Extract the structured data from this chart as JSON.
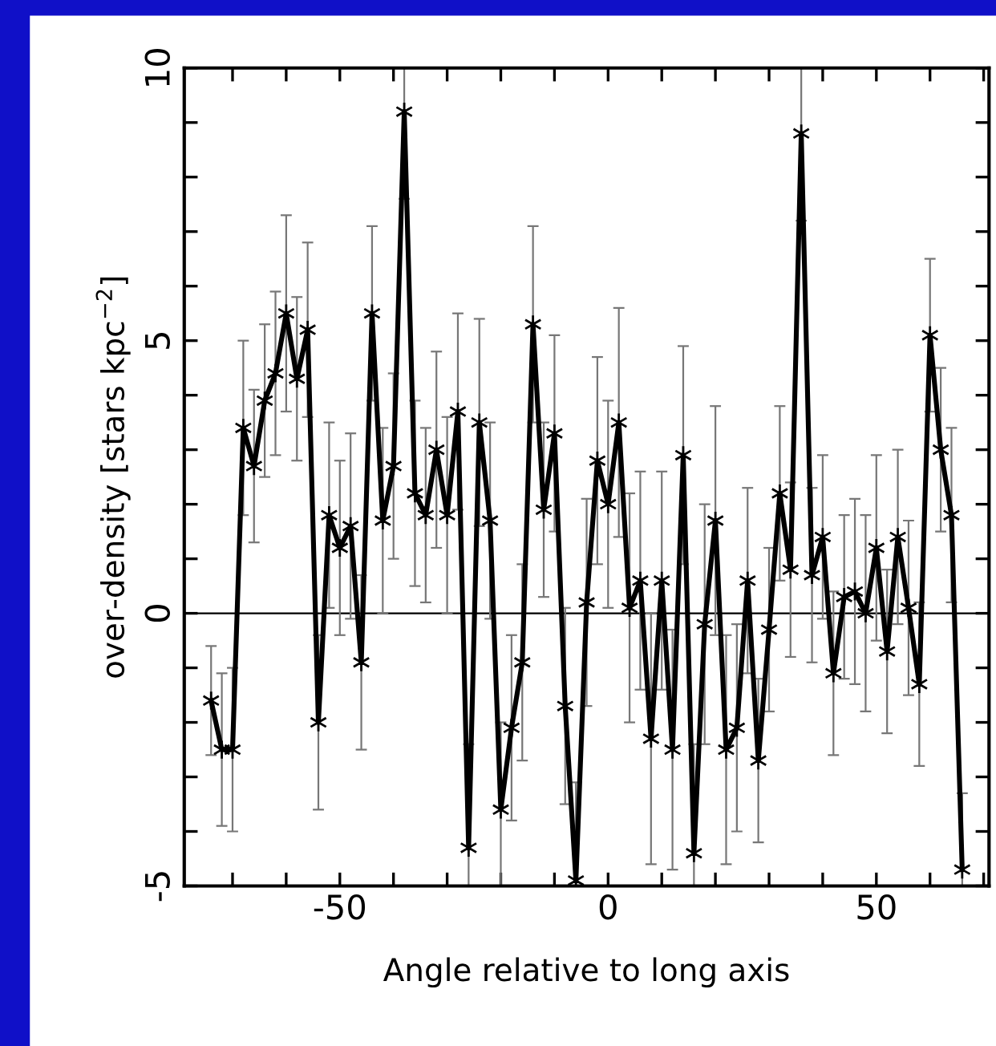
{
  "chart_data": {
    "type": "line",
    "xlabel": "Angle relative to long axis",
    "ylabel": "over-density [stars kpc$^{−2}$]",
    "x": [
      -74,
      -72,
      -70,
      -68,
      -66,
      -64,
      -62,
      -60,
      -58,
      -56,
      -54,
      -52,
      -50,
      -48,
      -46,
      -44,
      -42,
      -40,
      -38,
      -36,
      -34,
      -32,
      -30,
      -28,
      -26,
      -24,
      -22,
      -20,
      -18,
      -16,
      -14,
      -12,
      -10,
      -8,
      -6,
      -4,
      -2,
      0,
      2,
      4,
      6,
      8,
      10,
      12,
      14,
      16,
      18,
      20,
      22,
      24,
      26,
      28,
      30,
      32,
      34,
      36,
      38,
      40,
      42,
      44,
      46,
      48,
      50,
      52,
      54,
      56,
      58,
      60,
      62,
      64,
      66
    ],
    "series": [
      {
        "color": "#000000",
        "values": [
          -1.6,
          -2.5,
          -2.5,
          3.4,
          2.7,
          3.9,
          4.4,
          5.5,
          4.3,
          5.2,
          -2.0,
          1.8,
          1.2,
          1.6,
          -0.9,
          5.5,
          1.7,
          2.7,
          9.2,
          2.2,
          1.8,
          3.0,
          1.8,
          3.7,
          -4.3,
          3.5,
          1.7,
          -3.6,
          -2.1,
          -0.9,
          5.3,
          1.9,
          3.3,
          -1.7,
          -4.9,
          0.2,
          2.8,
          2.0,
          3.5,
          0.1,
          0.6,
          -2.3,
          0.6,
          -2.5,
          2.9,
          -4.4,
          -0.2,
          1.7,
          -2.5,
          -2.1,
          0.6,
          -2.7,
          -0.3,
          2.2,
          0.8,
          8.8,
          0.7,
          1.4,
          -1.1,
          0.3,
          0.4,
          0.0,
          1.2,
          -0.7,
          1.4,
          0.1,
          -1.3,
          5.1,
          3.0,
          1.8,
          -4.7
        ],
        "errors": [
          1.0,
          1.4,
          1.5,
          1.6,
          1.4,
          1.4,
          1.5,
          1.8,
          1.5,
          1.6,
          1.6,
          1.7,
          1.6,
          1.7,
          1.6,
          1.6,
          1.7,
          1.7,
          1.6,
          1.7,
          1.6,
          1.8,
          1.8,
          1.8,
          1.9,
          1.9,
          1.8,
          1.6,
          1.7,
          1.8,
          1.8,
          1.6,
          1.8,
          1.8,
          1.8,
          1.9,
          1.9,
          1.9,
          2.1,
          2.1,
          2.0,
          2.3,
          2.0,
          2.2,
          2.0,
          2.0,
          2.2,
          2.1,
          2.1,
          1.9,
          1.7,
          1.5,
          1.5,
          1.6,
          1.6,
          1.6,
          1.6,
          1.5,
          1.5,
          1.5,
          1.7,
          1.8,
          1.7,
          1.5,
          1.6,
          1.6,
          1.5,
          1.4,
          1.5,
          1.6,
          1.4
        ]
      }
    ],
    "xlim": [
      -79,
      71
    ],
    "ylim": [
      -5,
      10
    ],
    "xticks": [
      {
        "value": -70,
        "label": null
      },
      {
        "value": -60,
        "label": null
      },
      -50,
      {
        "value": -40,
        "label": null
      },
      {
        "value": -30,
        "label": null
      },
      {
        "value": -20,
        "label": null
      },
      {
        "value": -10,
        "label": null
      },
      0,
      {
        "value": 10,
        "label": null
      },
      {
        "value": 20,
        "label": null
      },
      {
        "value": 30,
        "label": null
      },
      {
        "value": 40,
        "label": null
      },
      50,
      {
        "value": 60,
        "label": null
      },
      {
        "value": 70,
        "label": null
      }
    ],
    "yticks": [
      -5,
      {
        "value": -4,
        "label": null
      },
      {
        "value": -3,
        "label": null
      },
      {
        "value": -2,
        "label": null
      },
      {
        "value": -1,
        "label": null
      },
      0,
      {
        "value": 1,
        "label": null
      },
      {
        "value": 2,
        "label": null
      },
      {
        "value": 3,
        "label": null
      },
      {
        "value": 4,
        "label": null
      },
      5,
      {
        "value": 6,
        "label": null
      },
      {
        "value": 7,
        "label": null
      },
      {
        "value": 8,
        "label": null
      },
      {
        "value": 9,
        "label": null
      },
      10
    ],
    "ref_lines": [
      {
        "axis": "y",
        "value": 0,
        "color": "#000000"
      }
    ],
    "marker": "cross",
    "line_style": "solid",
    "grid": false,
    "legend": false
  }
}
